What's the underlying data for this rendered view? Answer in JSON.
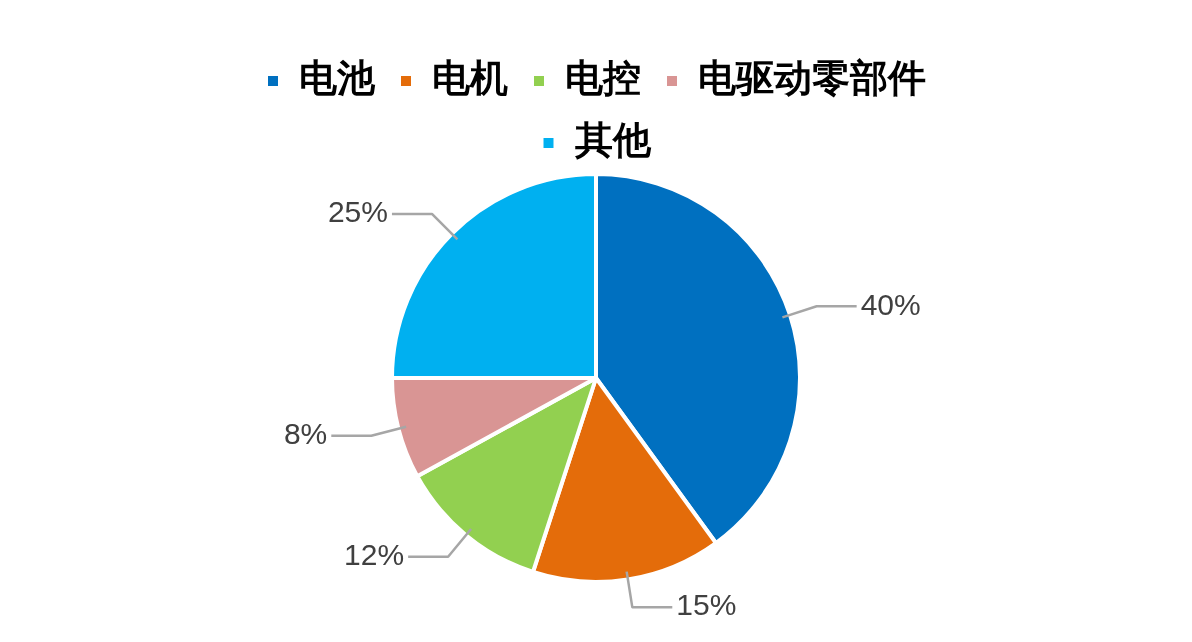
{
  "chart_data": {
    "type": "pie",
    "categories": [
      "电池",
      "电机",
      "电控",
      "电驱动零部件",
      "其他"
    ],
    "values": [
      40,
      15,
      12,
      8,
      25
    ],
    "colors": [
      "#0070c0",
      "#e46c0a",
      "#92d050",
      "#d99594",
      "#00b0f0"
    ],
    "value_labels": [
      "40%",
      "15%",
      "12%",
      "8%",
      "25%"
    ],
    "legend": "top"
  }
}
